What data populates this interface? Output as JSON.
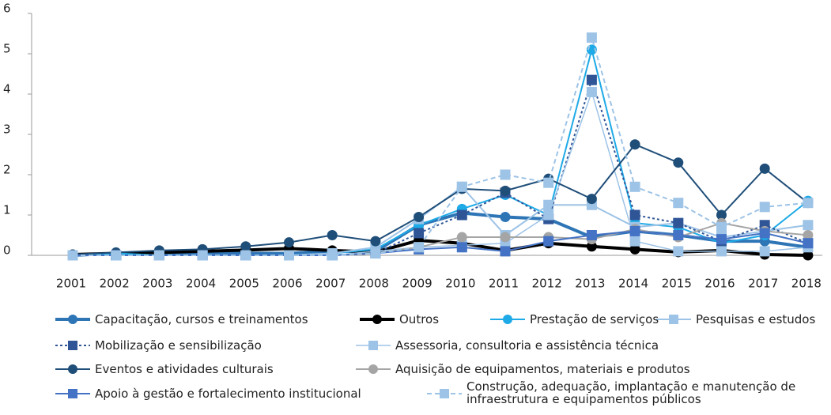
{
  "chart_data": {
    "type": "line",
    "categories": [
      "2001",
      "2002",
      "2003",
      "2004",
      "2005",
      "2006",
      "2007",
      "2008",
      "2009",
      "2010",
      "2011",
      "2012",
      "2013",
      "2014",
      "2015",
      "2016",
      "2017",
      "2018"
    ],
    "ylim": [
      0,
      6
    ],
    "yticks": [
      0,
      1,
      2,
      3,
      4,
      5,
      6
    ],
    "series": [
      {
        "name": "Capacitação, cursos e treinamentos",
        "color": "#2e75b6",
        "marker": "circle",
        "line_style": "solid",
        "line_width": 4,
        "values": [
          0,
          0.05,
          0.05,
          0.05,
          0.05,
          0.05,
          0.1,
          0.1,
          0.75,
          1.05,
          0.95,
          0.9,
          0.45,
          0.6,
          0.5,
          0.35,
          0.35,
          0.2
        ]
      },
      {
        "name": "Outros",
        "color": "#000000",
        "marker": "circle",
        "line_style": "solid",
        "line_width": 4,
        "values": [
          0.02,
          0.05,
          0.07,
          0.1,
          0.13,
          0.17,
          0.12,
          0.08,
          0.37,
          0.3,
          0.12,
          0.3,
          0.22,
          0.15,
          0.08,
          0.12,
          0.02,
          0
        ]
      },
      {
        "name": "Prestação de serviços",
        "color": "#1eaae7",
        "marker": "circle",
        "line_style": "solid",
        "line_width": 2,
        "values": [
          0,
          0.05,
          0,
          0,
          0,
          0,
          0.05,
          0.15,
          0.75,
          1.15,
          1.5,
          1.0,
          5.1,
          0.8,
          0.7,
          0.3,
          0.5,
          1.35
        ]
      },
      {
        "name": "Pesquisas e estudos",
        "color": "#9dc3e6",
        "marker": "square",
        "line_style": "solid",
        "line_width": 2,
        "values": [
          0,
          0,
          0,
          0,
          0,
          0,
          0.05,
          0.2,
          0.9,
          1.7,
          0.5,
          1.25,
          1.25,
          0.7,
          0.8,
          0.45,
          0.6,
          0.75
        ]
      },
      {
        "name": "Mobilização e sensibilização",
        "color": "#2f5597",
        "marker": "square",
        "line_style": "dotted",
        "line_width": 2,
        "values": [
          0,
          0,
          0,
          0,
          0,
          0,
          0,
          0.05,
          0.55,
          1.0,
          1.55,
          0.9,
          4.35,
          1.0,
          0.8,
          0.35,
          0.75,
          0.3
        ]
      },
      {
        "name": "Assessoria, consultoria e assistência técnica",
        "color": "#9dc3e6",
        "marker": "square",
        "line_style": "solid",
        "line_width": 1.5,
        "values": [
          0,
          0,
          0,
          0,
          0,
          0,
          0,
          0.1,
          0.2,
          0.25,
          0.3,
          1.0,
          4.05,
          0.35,
          0.1,
          0.1,
          0.1,
          0.2
        ]
      },
      {
        "name": "Eventos e atividades culturais",
        "color": "#1f4e79",
        "marker": "circle",
        "line_style": "solid",
        "line_width": 2,
        "values": [
          0.02,
          0.07,
          0.12,
          0.15,
          0.22,
          0.32,
          0.5,
          0.35,
          0.95,
          1.65,
          1.6,
          1.9,
          1.4,
          2.75,
          2.3,
          1.0,
          2.15,
          1.3
        ]
      },
      {
        "name": "Aquisição de equipamentos, materiais e produtos",
        "color": "#a5a5a5",
        "marker": "circle",
        "line_style": "solid",
        "line_width": 2,
        "values": [
          0,
          0,
          0,
          0,
          0,
          0,
          0,
          0.05,
          0.2,
          0.45,
          0.45,
          0.45,
          0.4,
          0.65,
          0.45,
          0.8,
          0.6,
          0.5
        ]
      },
      {
        "name": "Apoio à gestão e fortalecimento institucional",
        "color": "#4472c4",
        "marker": "square",
        "line_style": "solid",
        "line_width": 2,
        "values": [
          0,
          0,
          0,
          0,
          0,
          0,
          0,
          0.05,
          0.15,
          0.2,
          0.1,
          0.35,
          0.5,
          0.6,
          0.5,
          0.4,
          0.55,
          0.3
        ]
      },
      {
        "name": "Construção, adequação, implantação e manutenção de infraestrutura e equipamentos públicos",
        "color": "#9dc3e6",
        "marker": "square",
        "line_style": "dashed",
        "line_width": 2,
        "values": [
          0,
          0,
          0,
          0,
          0,
          0,
          0,
          0.05,
          0.2,
          1.7,
          2.0,
          1.8,
          5.4,
          1.7,
          1.3,
          0.7,
          1.2,
          1.3
        ]
      }
    ]
  }
}
